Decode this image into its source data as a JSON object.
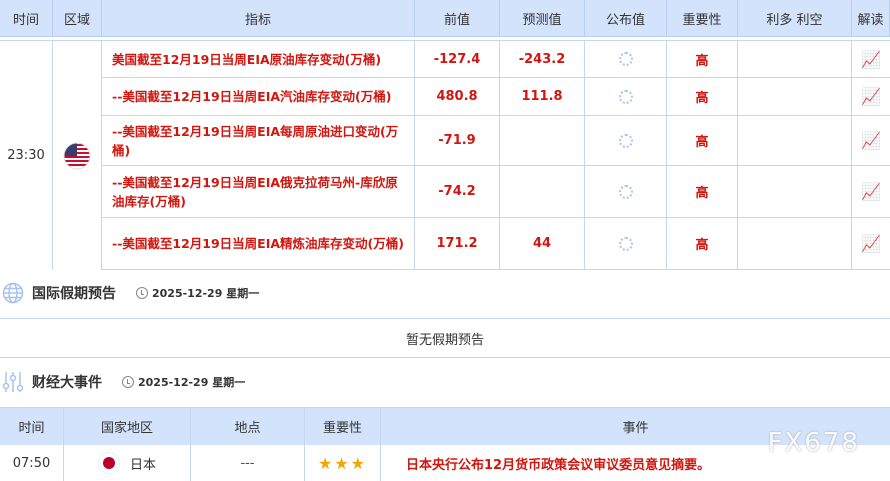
{
  "table": {
    "headers": [
      "时间",
      "区域",
      "指标",
      "前值",
      "预测值",
      "公布值",
      "重要性",
      "利多 利空",
      "解读"
    ],
    "time": "23:30",
    "region_flag": "us-flag-icon",
    "rows": [
      {
        "name": "美国截至12月19日当周EIA原油库存变动(万桶)",
        "prev": "-127.4",
        "forecast": "-243.2",
        "importance": "高"
      },
      {
        "name": "--美国截至12月19日当周EIA汽油库存变动(万桶)",
        "prev": "480.8",
        "forecast": "111.8",
        "importance": "高"
      },
      {
        "name": "--美国截至12月19日当周EIA每周原油进口变动(万桶)",
        "prev": "-71.9",
        "forecast": "",
        "importance": "高"
      },
      {
        "name": "--美国截至12月19日当周EIA俄克拉荷马州-库欣原油库存(万桶)",
        "prev": "-74.2",
        "forecast": "",
        "importance": "高"
      },
      {
        "name": "--美国截至12月19日当周EIA精炼油库存变动(万桶)",
        "prev": "171.2",
        "forecast": "44",
        "importance": "高"
      }
    ]
  },
  "holiday": {
    "title": "国际假期预告",
    "date": "2025-12-29 星期一",
    "empty": "暂无假期预告"
  },
  "events": {
    "title": "财经大事件",
    "date": "2025-12-29 星期一",
    "headers": [
      "时间",
      "国家地区",
      "地点",
      "重要性",
      "事件"
    ],
    "rows": [
      {
        "time": "07:50",
        "country": "日本",
        "place": "---",
        "stars": 3,
        "event": "日本央行公布12月货币政策会议审议委员意见摘要。"
      }
    ]
  },
  "watermark": "FX678",
  "colors": {
    "accent": "#d0160f",
    "header_bg": "#d2e3fb"
  }
}
